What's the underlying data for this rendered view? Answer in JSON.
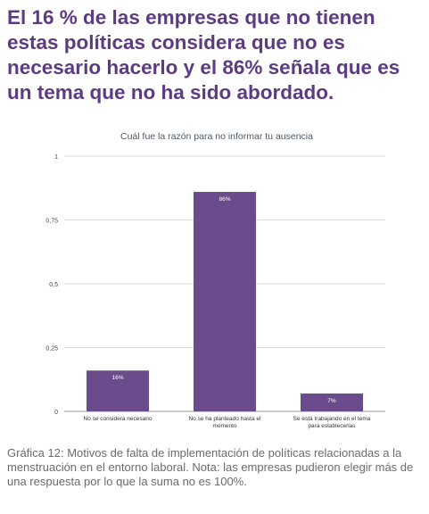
{
  "headline": "El 16 % de las empresas que no tienen estas políticas considera que no es necesario hacerlo y el 86% señala que es un tema que no ha sido abordado.",
  "caption": "Gráfica 12: Motivos de falta de implementación de políticas relacionadas a la menstruación en el entorno laboral. Nota: las empresas pudieron elegir más de una respuesta por lo que la suma no es 100%.",
  "colors": {
    "headline": "#5c3b82",
    "bar": "#6a4c8c",
    "chart_title": "#4a5a6a",
    "grid": "#d9d9d9",
    "caption": "#6b6b6b"
  },
  "chart_data": {
    "type": "bar",
    "title": "Cuál fue la razón para no informar tu ausencia",
    "categories": [
      "No se considera necesario",
      "No se ha planteado hasta el momento",
      "Se está trabajando en el tema para establecerlas"
    ],
    "category_lines": [
      [
        "No se considera necesario"
      ],
      [
        "No se ha planteado hasta el",
        "momento"
      ],
      [
        "Se está trabajando en el tema",
        "para establecerlas"
      ]
    ],
    "values": [
      0.16,
      0.86,
      0.07
    ],
    "data_labels": [
      "16%",
      "86%",
      "7%"
    ],
    "ylim": [
      0,
      1
    ],
    "yticks": [
      0,
      0.25,
      0.5,
      0.75,
      1
    ],
    "ytick_labels": [
      "0",
      "0,25",
      "0,5",
      "0,75",
      "1"
    ],
    "grid": true,
    "legend": "none",
    "xlabel": "",
    "ylabel": ""
  }
}
